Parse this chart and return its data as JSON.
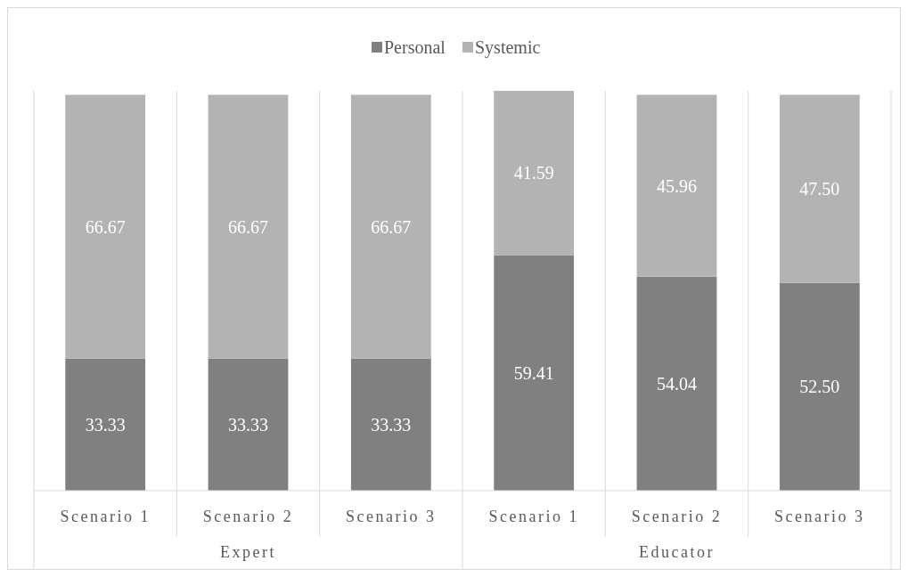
{
  "chart_data": {
    "type": "bar",
    "stacked": true,
    "legend": "top",
    "categories": [
      "Scenario 1",
      "Scenario 2",
      "Scenario 3",
      "Scenario 1",
      "Scenario 2",
      "Scenario 3"
    ],
    "series": [
      {
        "name": "Personal",
        "color": "#808080",
        "values": [
          33.33,
          33.33,
          33.33,
          59.41,
          54.04,
          52.5
        ],
        "value_labels": [
          "33.33",
          "33.33",
          "33.33",
          "59.41",
          "54.04",
          "52.50"
        ]
      },
      {
        "name": "Systemic",
        "color": "#b3b3b3",
        "values": [
          66.67,
          66.67,
          66.67,
          41.59,
          45.96,
          47.5
        ],
        "value_labels": [
          "66.67",
          "66.67",
          "66.67",
          "41.59",
          "45.96",
          "47.50"
        ]
      }
    ],
    "annotations": [
      "Expert",
      "Educator"
    ]
  }
}
